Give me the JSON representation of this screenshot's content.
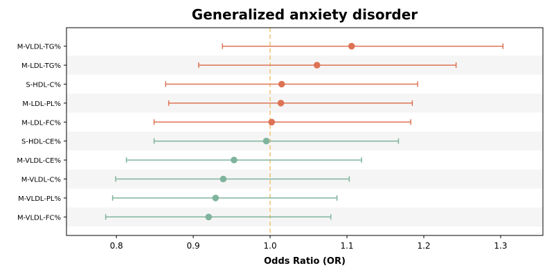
{
  "chart_data": {
    "type": "forest",
    "title": "Generalized anxiety disorder",
    "xlabel": "Odds Ratio (OR)",
    "ylabel": "",
    "xlim": [
      0.735,
      1.355
    ],
    "xticks": [
      0.8,
      0.9,
      1.0,
      1.1,
      1.2,
      1.3
    ],
    "xtick_labels": [
      "0.8",
      "0.9",
      "1.0",
      "1.1",
      "1.2",
      "1.3"
    ],
    "reference_line": 1.0,
    "grid": false,
    "colors": {
      "increased_risk": "#dd7355",
      "decreased_risk": "#7fb49c",
      "reference_line": "#f2c37b",
      "stripe": "#f5f5f5"
    },
    "rows": [
      {
        "label": "M-VLDL-TG%",
        "or": 1.106,
        "ci_low": 0.938,
        "ci_high": 1.303,
        "direction": "increased_risk"
      },
      {
        "label": "M-LDL-TG%",
        "or": 1.061,
        "ci_low": 0.907,
        "ci_high": 1.242,
        "direction": "increased_risk"
      },
      {
        "label": "S-HDL-C%",
        "or": 1.015,
        "ci_low": 0.864,
        "ci_high": 1.192,
        "direction": "increased_risk"
      },
      {
        "label": "M-LDL-PL%",
        "or": 1.014,
        "ci_low": 0.868,
        "ci_high": 1.185,
        "direction": "increased_risk"
      },
      {
        "label": "M-LDL-FC%",
        "or": 1.002,
        "ci_low": 0.849,
        "ci_high": 1.183,
        "direction": "increased_risk"
      },
      {
        "label": "S-HDL-CE%",
        "or": 0.995,
        "ci_low": 0.849,
        "ci_high": 1.167,
        "direction": "decreased_risk"
      },
      {
        "label": "M-VLDL-CE%",
        "or": 0.953,
        "ci_low": 0.813,
        "ci_high": 1.119,
        "direction": "decreased_risk"
      },
      {
        "label": "M-VLDL-C%",
        "or": 0.939,
        "ci_low": 0.799,
        "ci_high": 1.103,
        "direction": "decreased_risk"
      },
      {
        "label": "M-VLDL-PL%",
        "or": 0.929,
        "ci_low": 0.795,
        "ci_high": 1.087,
        "direction": "decreased_risk"
      },
      {
        "label": "M-VLDL-FC%",
        "or": 0.92,
        "ci_low": 0.786,
        "ci_high": 1.079,
        "direction": "decreased_risk"
      }
    ]
  }
}
